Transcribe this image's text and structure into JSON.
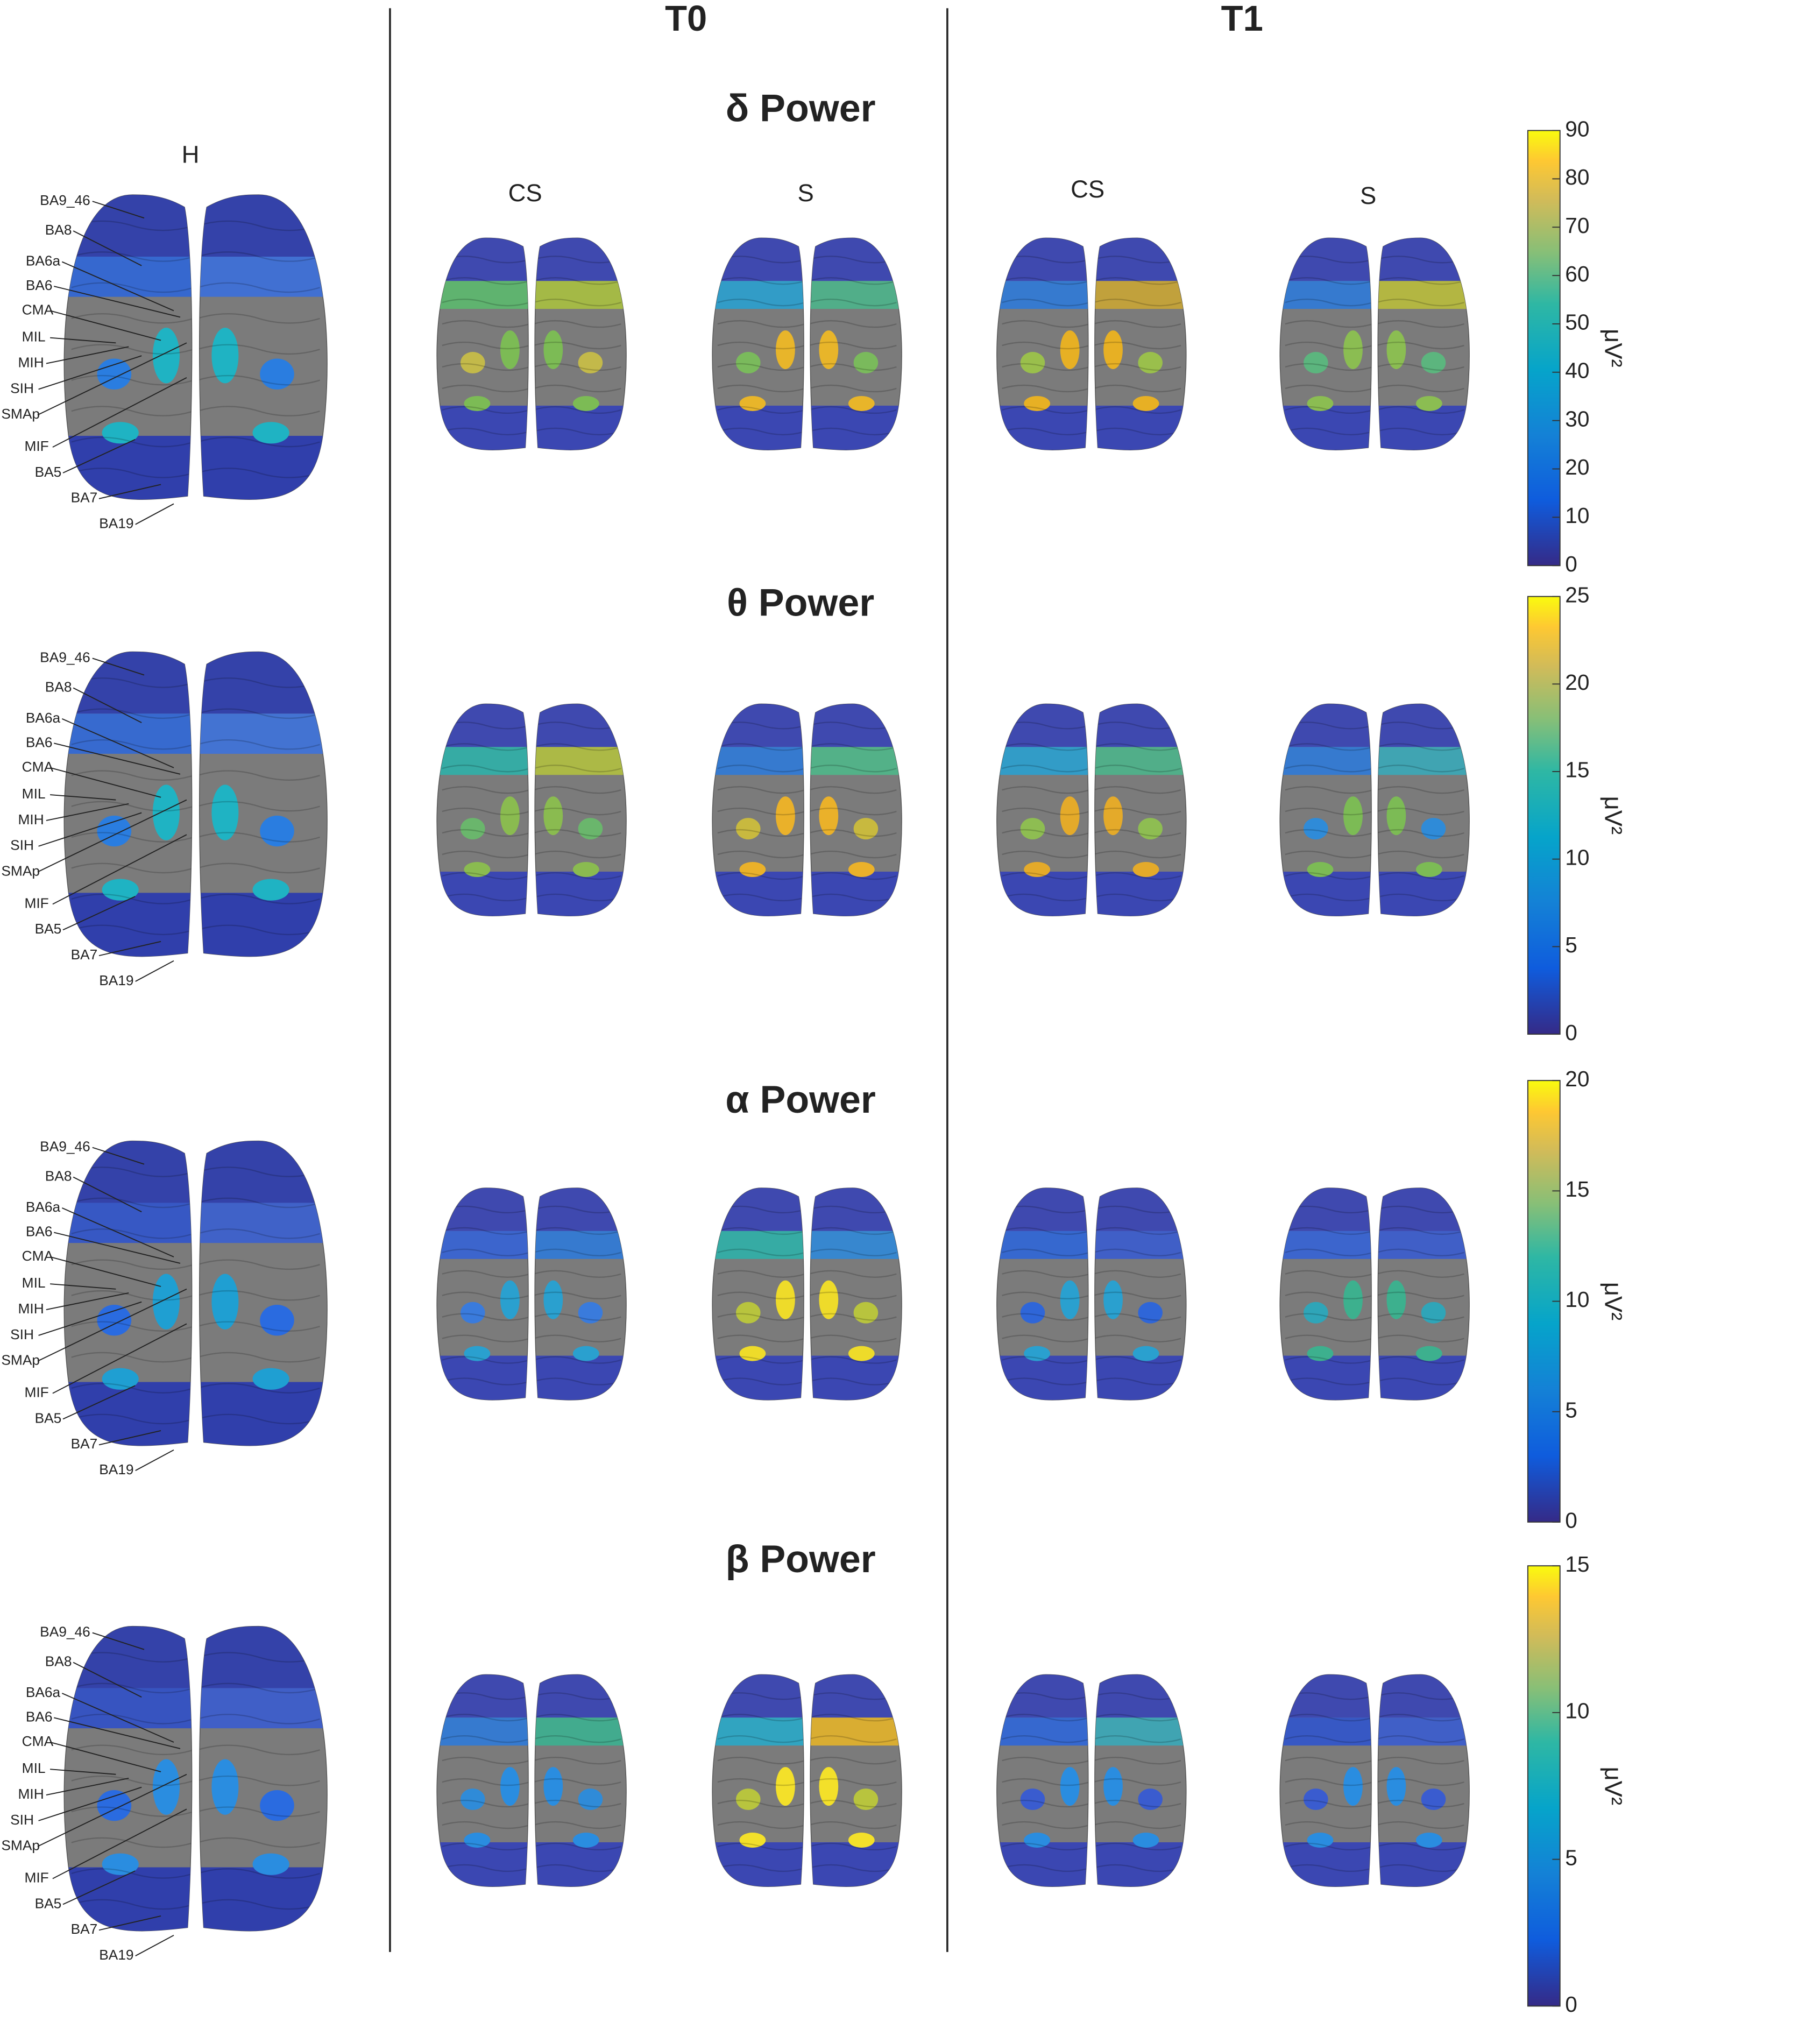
{
  "headers": [
    "T0",
    "T1"
  ],
  "control_label": "H",
  "columns": [
    "CS",
    "S",
    "CS",
    "S"
  ],
  "regions": [
    "BA9_46",
    "BA8",
    "BA6a",
    "BA6",
    "CMA",
    "MIL",
    "MIH",
    "SIH",
    "SMAp",
    "MIF",
    "BA5",
    "BA7",
    "BA19"
  ],
  "rows": [
    {
      "title": "δ Power",
      "colorbar": {
        "lim": [
          0,
          90
        ],
        "ticks": [
          0,
          10,
          20,
          30,
          40,
          50,
          60,
          70,
          80,
          90
        ],
        "unit": "μV²"
      }
    },
    {
      "title": "θ Power",
      "colorbar": {
        "lim": [
          0,
          25
        ],
        "ticks": [
          0,
          5,
          10,
          15,
          20,
          25
        ],
        "unit": "μV²"
      }
    },
    {
      "title": "α Power",
      "colorbar": {
        "lim": [
          0,
          20
        ],
        "ticks": [
          0,
          5,
          10,
          15,
          20
        ],
        "unit": "μV²"
      }
    },
    {
      "title": "β Power",
      "colorbar": {
        "lim": [
          0,
          15
        ],
        "ticks": [
          0,
          5,
          10,
          15
        ],
        "unit": "μV²"
      }
    }
  ]
}
